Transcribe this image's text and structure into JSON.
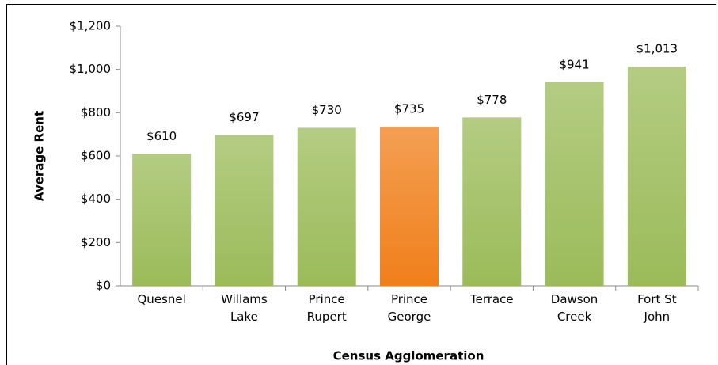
{
  "chart_data": {
    "type": "bar",
    "x_label": "Census Agglomeration",
    "y_label": "Average Rent",
    "categories": [
      "Quesnel",
      "Willams Lake",
      "Prince Rupert",
      "Prince George",
      "Terrace",
      "Dawson Creek",
      "Fort St John"
    ],
    "values": [
      610,
      697,
      730,
      735,
      778,
      941,
      1013
    ],
    "value_labels": [
      "$610",
      "$697",
      "$730",
      "$735",
      "$778",
      "$941",
      "$1,013"
    ],
    "colors": [
      "#9bbb59",
      "#9bbb59",
      "#9bbb59",
      "#f07f1a",
      "#9bbb59",
      "#9bbb59",
      "#9bbb59"
    ],
    "ylim": [
      0,
      1200
    ],
    "yticks": [
      {
        "value": 0,
        "label": "$0"
      },
      {
        "value": 200,
        "label": "$200"
      },
      {
        "value": 400,
        "label": "$400"
      },
      {
        "value": 600,
        "label": "$600"
      },
      {
        "value": 800,
        "label": "$800"
      },
      {
        "value": 1000,
        "label": "$1,000"
      },
      {
        "value": 1200,
        "label": "$1,200"
      }
    ],
    "grid": false
  }
}
